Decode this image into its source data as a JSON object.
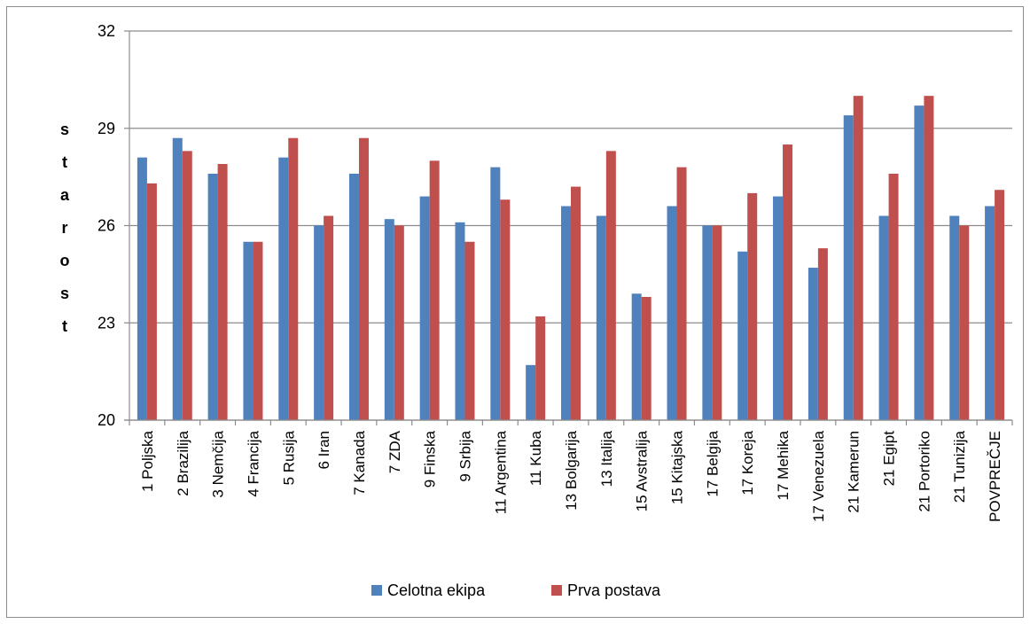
{
  "chart_data": {
    "type": "bar",
    "title": "",
    "xlabel": "",
    "ylabel": "starost",
    "ylim": [
      20,
      32
    ],
    "yticks": [
      20,
      23,
      26,
      29,
      32
    ],
    "grid": true,
    "legend_position": "bottom",
    "categories": [
      "1 Poljska",
      "2 Brazilija",
      "3 Nemčija",
      "4 Francija",
      "5 Rusija",
      "6 Iran",
      "7 Kanada",
      "7 ZDA",
      "9 Finska",
      "9 Srbija",
      "11 Argentina",
      "11 Kuba",
      "13 Bolgarija",
      "13 Italija",
      "15 Avstralija",
      "15 Kitajska",
      "17 Belgija",
      "17 Koreja",
      "17 Mehika",
      "17 Venezuela",
      "21 Kamerun",
      "21 Egipt",
      "21 Portoriko",
      "21 Tunizija",
      "POVPREČJE"
    ],
    "series": [
      {
        "name": "Celotna ekipa",
        "color": "#4f81bd",
        "values": [
          28.1,
          28.7,
          27.6,
          25.5,
          28.1,
          26.0,
          27.6,
          26.2,
          26.9,
          26.1,
          27.8,
          21.7,
          26.6,
          26.3,
          23.9,
          26.6,
          26.0,
          25.2,
          26.9,
          24.7,
          29.4,
          26.3,
          29.7,
          26.3,
          26.6
        ]
      },
      {
        "name": "Prva postava",
        "color": "#c0504d",
        "values": [
          27.3,
          28.3,
          27.9,
          25.5,
          28.7,
          26.3,
          28.7,
          26.0,
          28.0,
          25.5,
          26.8,
          23.2,
          27.2,
          28.3,
          23.8,
          27.8,
          26.0,
          27.0,
          28.5,
          25.3,
          30.0,
          27.6,
          30.0,
          26.0,
          27.1
        ]
      }
    ]
  }
}
